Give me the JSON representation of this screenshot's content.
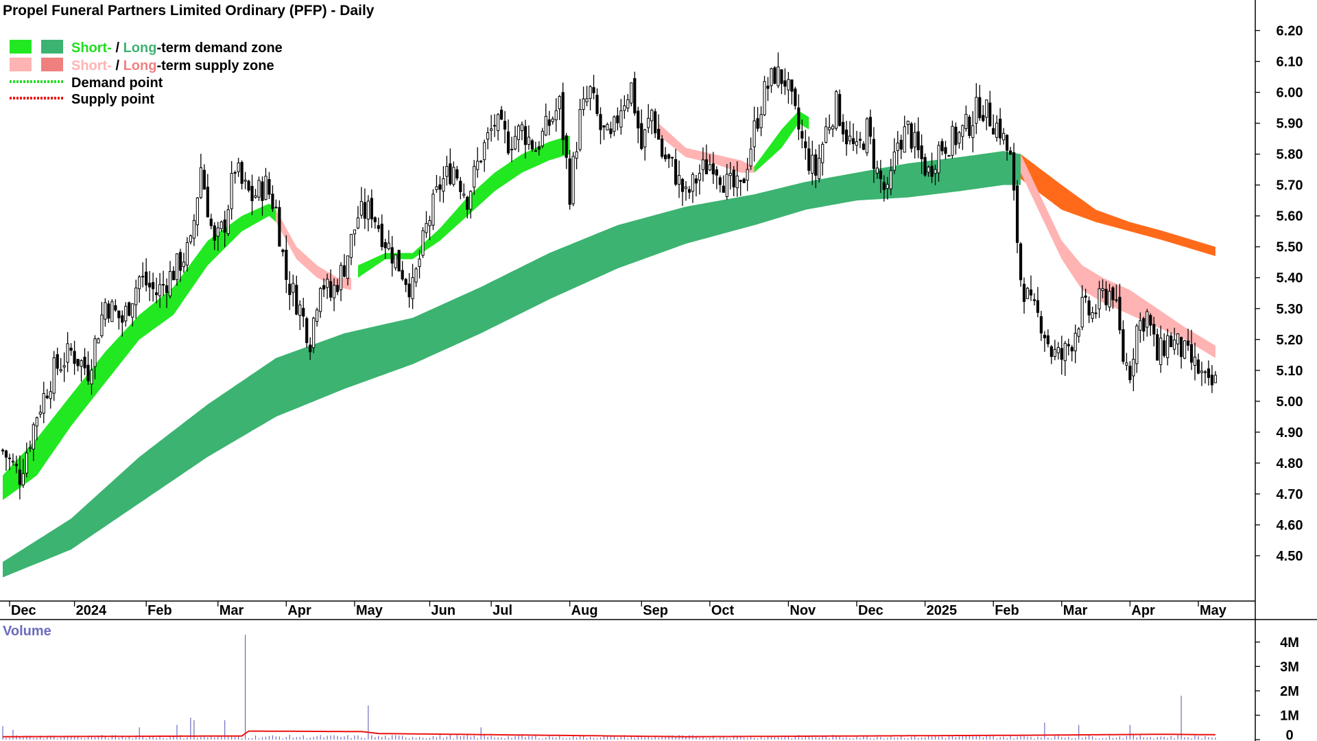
{
  "chart_data": {
    "type": "candlestick",
    "title": "Propel Funeral Partners Limited Ordinary (PFP) - Daily",
    "colors": {
      "short_demand": "#22e822",
      "long_demand": "#3cb371",
      "short_supply": "#ffb3b3",
      "long_supply": "#ff6347",
      "overlap_zone": "#ff6a1a",
      "demand_point": "#22dd22",
      "supply_point": "#ee1111",
      "volume_bar": "#6b6bbf",
      "volume_ma": "#ee1111",
      "candle": "#000000"
    },
    "legend": {
      "demand_short": "Short-",
      "demand_sep": " / ",
      "demand_long": "Long",
      "demand_rest": "-term demand zone",
      "supply_short": "Short-",
      "supply_sep": " / ",
      "supply_long": "Long",
      "supply_rest": "-term supply zone",
      "demand_point": "Demand point",
      "supply_point": "Supply point"
    },
    "y_axis": {
      "ylim": [
        4.4,
        6.25
      ],
      "ticks": [
        "4.50",
        "4.60",
        "4.70",
        "4.80",
        "4.90",
        "5.00",
        "5.10",
        "5.20",
        "5.30",
        "5.40",
        "5.50",
        "5.60",
        "5.70",
        "5.80",
        "5.90",
        "6.00",
        "6.10",
        "6.20"
      ]
    },
    "x_axis": {
      "ticks": [
        {
          "label": "Dec",
          "i": 2
        },
        {
          "label": "2024",
          "i": 21
        },
        {
          "label": "Feb",
          "i": 42
        },
        {
          "label": "Mar",
          "i": 63
        },
        {
          "label": "Apr",
          "i": 83
        },
        {
          "label": "May",
          "i": 103
        },
        {
          "label": "Jun",
          "i": 125
        },
        {
          "label": "Jul",
          "i": 143
        },
        {
          "label": "Aug",
          "i": 166
        },
        {
          "label": "Sep",
          "i": 187
        },
        {
          "label": "Oct",
          "i": 207
        },
        {
          "label": "Nov",
          "i": 230
        },
        {
          "label": "Dec",
          "i": 250
        },
        {
          "label": "2025",
          "i": 270
        },
        {
          "label": "Feb",
          "i": 290
        },
        {
          "label": "Mar",
          "i": 310
        },
        {
          "label": "Apr",
          "i": 330
        },
        {
          "label": "May",
          "i": 350
        }
      ]
    },
    "close_anchors": [
      [
        0,
        4.84
      ],
      [
        5,
        4.76
      ],
      [
        10,
        4.96
      ],
      [
        15,
        5.1
      ],
      [
        20,
        5.16
      ],
      [
        25,
        5.1
      ],
      [
        30,
        5.32
      ],
      [
        35,
        5.26
      ],
      [
        40,
        5.4
      ],
      [
        45,
        5.35
      ],
      [
        50,
        5.42
      ],
      [
        55,
        5.5
      ],
      [
        58,
        5.76
      ],
      [
        62,
        5.5
      ],
      [
        65,
        5.58
      ],
      [
        68,
        5.76
      ],
      [
        70,
        5.7
      ],
      [
        73,
        5.66
      ],
      [
        77,
        5.7
      ],
      [
        80,
        5.62
      ],
      [
        83,
        5.4
      ],
      [
        87,
        5.3
      ],
      [
        90,
        5.2
      ],
      [
        93,
        5.4
      ],
      [
        96,
        5.34
      ],
      [
        100,
        5.44
      ],
      [
        104,
        5.6
      ],
      [
        108,
        5.62
      ],
      [
        112,
        5.52
      ],
      [
        116,
        5.44
      ],
      [
        120,
        5.36
      ],
      [
        124,
        5.56
      ],
      [
        128,
        5.7
      ],
      [
        132,
        5.76
      ],
      [
        136,
        5.66
      ],
      [
        140,
        5.8
      ],
      [
        144,
        5.9
      ],
      [
        148,
        5.84
      ],
      [
        152,
        5.88
      ],
      [
        156,
        5.82
      ],
      [
        160,
        5.9
      ],
      [
        163,
        5.96
      ],
      [
        166,
        5.68
      ],
      [
        169,
        5.92
      ],
      [
        172,
        6.0
      ],
      [
        175,
        5.88
      ],
      [
        178,
        5.84
      ],
      [
        181,
        5.96
      ],
      [
        184,
        6.02
      ],
      [
        187,
        5.82
      ],
      [
        190,
        5.94
      ],
      [
        193,
        5.8
      ],
      [
        196,
        5.76
      ],
      [
        200,
        5.66
      ],
      [
        204,
        5.74
      ],
      [
        208,
        5.78
      ],
      [
        212,
        5.7
      ],
      [
        216,
        5.68
      ],
      [
        220,
        5.88
      ],
      [
        223,
        6.0
      ],
      [
        226,
        6.06
      ],
      [
        229,
        6.04
      ],
      [
        232,
        5.92
      ],
      [
        235,
        5.8
      ],
      [
        238,
        5.74
      ],
      [
        241,
        5.88
      ],
      [
        244,
        5.96
      ],
      [
        247,
        5.86
      ],
      [
        250,
        5.8
      ],
      [
        253,
        5.88
      ],
      [
        256,
        5.74
      ],
      [
        259,
        5.66
      ],
      [
        262,
        5.84
      ],
      [
        265,
        5.88
      ],
      [
        268,
        5.8
      ],
      [
        271,
        5.74
      ],
      [
        274,
        5.82
      ],
      [
        277,
        5.84
      ],
      [
        280,
        5.86
      ],
      [
        283,
        5.9
      ],
      [
        286,
        5.96
      ],
      [
        289,
        5.92
      ],
      [
        292,
        5.88
      ],
      [
        295,
        5.78
      ],
      [
        298,
        5.4
      ],
      [
        301,
        5.3
      ],
      [
        304,
        5.26
      ],
      [
        307,
        5.16
      ],
      [
        310,
        5.14
      ],
      [
        313,
        5.2
      ],
      [
        316,
        5.3
      ],
      [
        319,
        5.28
      ],
      [
        322,
        5.34
      ],
      [
        325,
        5.36
      ],
      [
        328,
        5.14
      ],
      [
        330,
        5.1
      ],
      [
        332,
        5.24
      ],
      [
        335,
        5.28
      ],
      [
        338,
        5.14
      ],
      [
        341,
        5.2
      ],
      [
        344,
        5.18
      ],
      [
        347,
        5.14
      ],
      [
        350,
        5.1
      ],
      [
        353,
        5.04
      ],
      [
        355,
        5.06
      ]
    ],
    "long_demand_band": {
      "upper": [
        [
          0,
          4.48
        ],
        [
          20,
          4.62
        ],
        [
          40,
          4.82
        ],
        [
          60,
          4.99
        ],
        [
          80,
          5.14
        ],
        [
          100,
          5.22
        ],
        [
          120,
          5.27
        ],
        [
          140,
          5.37
        ],
        [
          160,
          5.48
        ],
        [
          180,
          5.57
        ],
        [
          200,
          5.63
        ],
        [
          220,
          5.67
        ],
        [
          235,
          5.71
        ],
        [
          250,
          5.74
        ],
        [
          265,
          5.77
        ],
        [
          280,
          5.79
        ],
        [
          293,
          5.81
        ],
        [
          298,
          5.8
        ]
      ],
      "lower": [
        [
          0,
          4.43
        ],
        [
          20,
          4.52
        ],
        [
          40,
          4.67
        ],
        [
          60,
          4.82
        ],
        [
          80,
          4.95
        ],
        [
          100,
          5.04
        ],
        [
          120,
          5.12
        ],
        [
          140,
          5.22
        ],
        [
          160,
          5.33
        ],
        [
          180,
          5.43
        ],
        [
          200,
          5.51
        ],
        [
          220,
          5.57
        ],
        [
          235,
          5.62
        ],
        [
          250,
          5.65
        ],
        [
          265,
          5.66
        ],
        [
          280,
          5.68
        ],
        [
          293,
          5.7
        ],
        [
          298,
          5.7
        ]
      ]
    },
    "long_supply_band": {
      "upper": [
        [
          298,
          5.8
        ],
        [
          310,
          5.7
        ],
        [
          320,
          5.62
        ],
        [
          330,
          5.58
        ],
        [
          340,
          5.55
        ],
        [
          355,
          5.5
        ]
      ],
      "lower": [
        [
          298,
          5.72
        ],
        [
          310,
          5.62
        ],
        [
          320,
          5.58
        ],
        [
          330,
          5.55
        ],
        [
          340,
          5.52
        ],
        [
          355,
          5.47
        ]
      ]
    },
    "short_demand_band": {
      "upper": [
        [
          0,
          4.76
        ],
        [
          10,
          4.88
        ],
        [
          20,
          5.02
        ],
        [
          30,
          5.16
        ],
        [
          40,
          5.28
        ],
        [
          50,
          5.37
        ],
        [
          60,
          5.52
        ],
        [
          70,
          5.6
        ],
        [
          78,
          5.64
        ],
        [
          80,
          5.62
        ]
      ],
      "lower": [
        [
          0,
          4.68
        ],
        [
          10,
          4.76
        ],
        [
          20,
          4.92
        ],
        [
          30,
          5.06
        ],
        [
          40,
          5.2
        ],
        [
          50,
          5.28
        ],
        [
          60,
          5.44
        ],
        [
          70,
          5.55
        ],
        [
          78,
          5.6
        ],
        [
          80,
          5.58
        ]
      ]
    },
    "short_supply_band": {
      "upper": [
        [
          80,
          5.62
        ],
        [
          86,
          5.5
        ],
        [
          92,
          5.44
        ],
        [
          98,
          5.4
        ],
        [
          102,
          5.4
        ]
      ],
      "lower": [
        [
          80,
          5.58
        ],
        [
          86,
          5.46
        ],
        [
          92,
          5.4
        ],
        [
          98,
          5.37
        ],
        [
          102,
          5.36
        ]
      ]
    },
    "short_demand_band2": {
      "upper": [
        [
          104,
          5.44
        ],
        [
          112,
          5.48
        ],
        [
          120,
          5.48
        ],
        [
          128,
          5.56
        ],
        [
          136,
          5.66
        ],
        [
          144,
          5.74
        ],
        [
          152,
          5.8
        ],
        [
          160,
          5.84
        ],
        [
          166,
          5.86
        ]
      ],
      "lower": [
        [
          104,
          5.4
        ],
        [
          112,
          5.46
        ],
        [
          120,
          5.46
        ],
        [
          128,
          5.52
        ],
        [
          136,
          5.6
        ],
        [
          144,
          5.68
        ],
        [
          152,
          5.74
        ],
        [
          160,
          5.78
        ],
        [
          166,
          5.8
        ]
      ]
    },
    "short_supply_band2": {
      "upper": [
        [
          192,
          5.9
        ],
        [
          200,
          5.82
        ],
        [
          208,
          5.8
        ],
        [
          216,
          5.78
        ],
        [
          220,
          5.76
        ]
      ],
      "lower": [
        [
          192,
          5.86
        ],
        [
          200,
          5.79
        ],
        [
          208,
          5.77
        ],
        [
          216,
          5.74
        ],
        [
          220,
          5.74
        ]
      ]
    },
    "short_demand_band3": {
      "upper": [
        [
          220,
          5.76
        ],
        [
          228,
          5.88
        ],
        [
          233,
          5.94
        ],
        [
          236,
          5.92
        ]
      ],
      "lower": [
        [
          220,
          5.74
        ],
        [
          228,
          5.82
        ],
        [
          233,
          5.9
        ],
        [
          236,
          5.88
        ]
      ]
    },
    "short_supply_band3": {
      "upper": [
        [
          298,
          5.8
        ],
        [
          304,
          5.66
        ],
        [
          310,
          5.52
        ],
        [
          316,
          5.44
        ],
        [
          322,
          5.4
        ],
        [
          330,
          5.36
        ],
        [
          338,
          5.3
        ],
        [
          346,
          5.24
        ],
        [
          355,
          5.18
        ]
      ],
      "lower": [
        [
          298,
          5.74
        ],
        [
          304,
          5.6
        ],
        [
          310,
          5.46
        ],
        [
          316,
          5.36
        ],
        [
          322,
          5.32
        ],
        [
          330,
          5.28
        ],
        [
          338,
          5.24
        ],
        [
          346,
          5.2
        ],
        [
          355,
          5.14
        ]
      ]
    },
    "volume": {
      "label": "Volume",
      "ylim": [
        0,
        4500000
      ],
      "ticks": [
        "0",
        "1M",
        "2M",
        "3M",
        "4M"
      ],
      "spikes": [
        [
          0,
          0.55
        ],
        [
          3,
          0.4
        ],
        [
          40,
          0.5
        ],
        [
          51,
          0.6
        ],
        [
          55,
          0.9
        ],
        [
          56,
          0.8
        ],
        [
          65,
          0.8
        ],
        [
          71,
          4.3
        ],
        [
          107,
          1.4
        ],
        [
          140,
          0.5
        ],
        [
          305,
          0.7
        ],
        [
          315,
          0.6
        ],
        [
          330,
          0.6
        ],
        [
          345,
          1.8
        ]
      ],
      "base": 0.15,
      "ma": [
        [
          0,
          0.12
        ],
        [
          70,
          0.15
        ],
        [
          72,
          0.35
        ],
        [
          105,
          0.33
        ],
        [
          110,
          0.25
        ],
        [
          200,
          0.12
        ],
        [
          300,
          0.18
        ],
        [
          340,
          0.22
        ],
        [
          355,
          0.2
        ]
      ]
    }
  }
}
